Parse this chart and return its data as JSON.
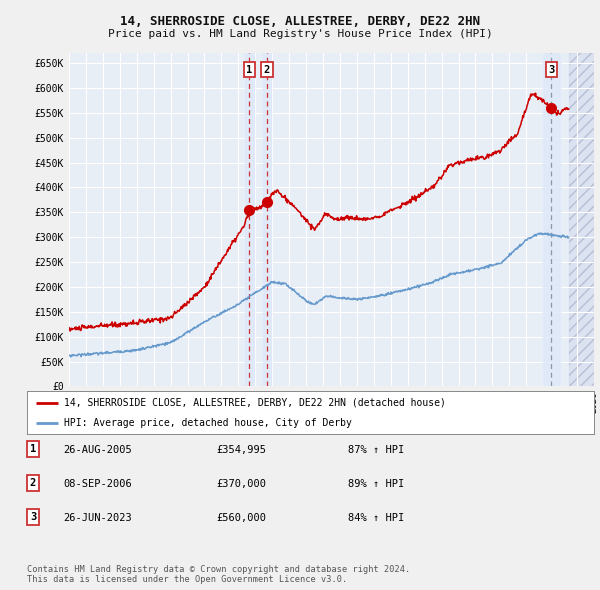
{
  "title1": "14, SHERROSIDE CLOSE, ALLESTREE, DERBY, DE22 2HN",
  "title2": "Price paid vs. HM Land Registry's House Price Index (HPI)",
  "bg_color": "#f0f0f0",
  "plot_bg_color": "#e8eef6",
  "grid_color": "#ffffff",
  "red_line_color": "#cc0000",
  "blue_line_color": "#6699cc",
  "sale1_date_x": 2005.65,
  "sale1_price": 354995,
  "sale2_date_x": 2006.69,
  "sale2_price": 370000,
  "sale3_date_x": 2023.49,
  "sale3_price": 560000,
  "xmin": 1995,
  "xmax": 2026,
  "ymin": 0,
  "ymax": 670000,
  "yticks": [
    0,
    50000,
    100000,
    150000,
    200000,
    250000,
    300000,
    350000,
    400000,
    450000,
    500000,
    550000,
    600000,
    650000
  ],
  "ytick_labels": [
    "£0",
    "£50K",
    "£100K",
    "£150K",
    "£200K",
    "£250K",
    "£300K",
    "£350K",
    "£400K",
    "£450K",
    "£500K",
    "£550K",
    "£600K",
    "£650K"
  ],
  "legend_line1": "14, SHERROSIDE CLOSE, ALLESTREE, DERBY, DE22 2HN (detached house)",
  "legend_line2": "HPI: Average price, detached house, City of Derby",
  "table_rows": [
    {
      "num": "1",
      "date": "26-AUG-2005",
      "price": "£354,995",
      "pct": "87% ↑ HPI"
    },
    {
      "num": "2",
      "date": "08-SEP-2006",
      "price": "£370,000",
      "pct": "89% ↑ HPI"
    },
    {
      "num": "3",
      "date": "26-JUN-2023",
      "price": "£560,000",
      "pct": "84% ↑ HPI"
    }
  ],
  "footer": "Contains HM Land Registry data © Crown copyright and database right 2024.\nThis data is licensed under the Open Government Licence v3.0."
}
